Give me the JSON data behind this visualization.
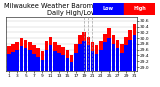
{
  "title": "Milwaukee Weather Barometric Pressure",
  "subtitle": "Daily High/Low",
  "legend_high": "High",
  "legend_low": "Low",
  "color_high": "#ff0000",
  "color_low": "#0000ff",
  "background_color": "#ffffff",
  "ytick_labels": [
    "29.0",
    "29.2",
    "29.4",
    "29.6",
    "29.8",
    "30.0",
    "30.2",
    "30.4",
    "30.6"
  ],
  "ylim": [
    28.85,
    30.72
  ],
  "n_bars": 31,
  "high_values": [
    29.72,
    29.8,
    29.85,
    30.02,
    29.95,
    29.88,
    29.75,
    29.65,
    29.55,
    29.9,
    30.05,
    29.85,
    29.78,
    29.7,
    29.6,
    29.42,
    29.8,
    30.1,
    30.22,
    30.05,
    29.85,
    29.75,
    29.9,
    30.15,
    30.35,
    30.12,
    29.95,
    29.8,
    30.05,
    30.28,
    30.48
  ],
  "low_values": [
    29.45,
    29.52,
    29.58,
    29.72,
    29.65,
    29.6,
    29.45,
    29.35,
    29.25,
    29.58,
    29.75,
    29.55,
    29.48,
    29.4,
    29.3,
    29.18,
    29.5,
    29.8,
    29.9,
    29.75,
    29.55,
    29.45,
    29.6,
    29.85,
    30.0,
    29.8,
    29.65,
    29.5,
    29.75,
    29.95,
    30.12
  ],
  "x_tick_indices": [
    0,
    2,
    4,
    6,
    8,
    10,
    12,
    14,
    16,
    18,
    20,
    22,
    24,
    26,
    28,
    30
  ],
  "x_tick_labels": [
    "1",
    "3",
    "5",
    "7",
    "9",
    "11",
    "13",
    "15",
    "17",
    "19",
    "21",
    "23",
    "25",
    "27",
    "29",
    "31"
  ],
  "bar_width": 0.85,
  "title_fontsize": 4.8,
  "tick_fontsize": 3.2,
  "legend_fontsize": 3.5,
  "grid_color": "#999999",
  "dashed_indices": [
    18,
    19,
    20
  ]
}
